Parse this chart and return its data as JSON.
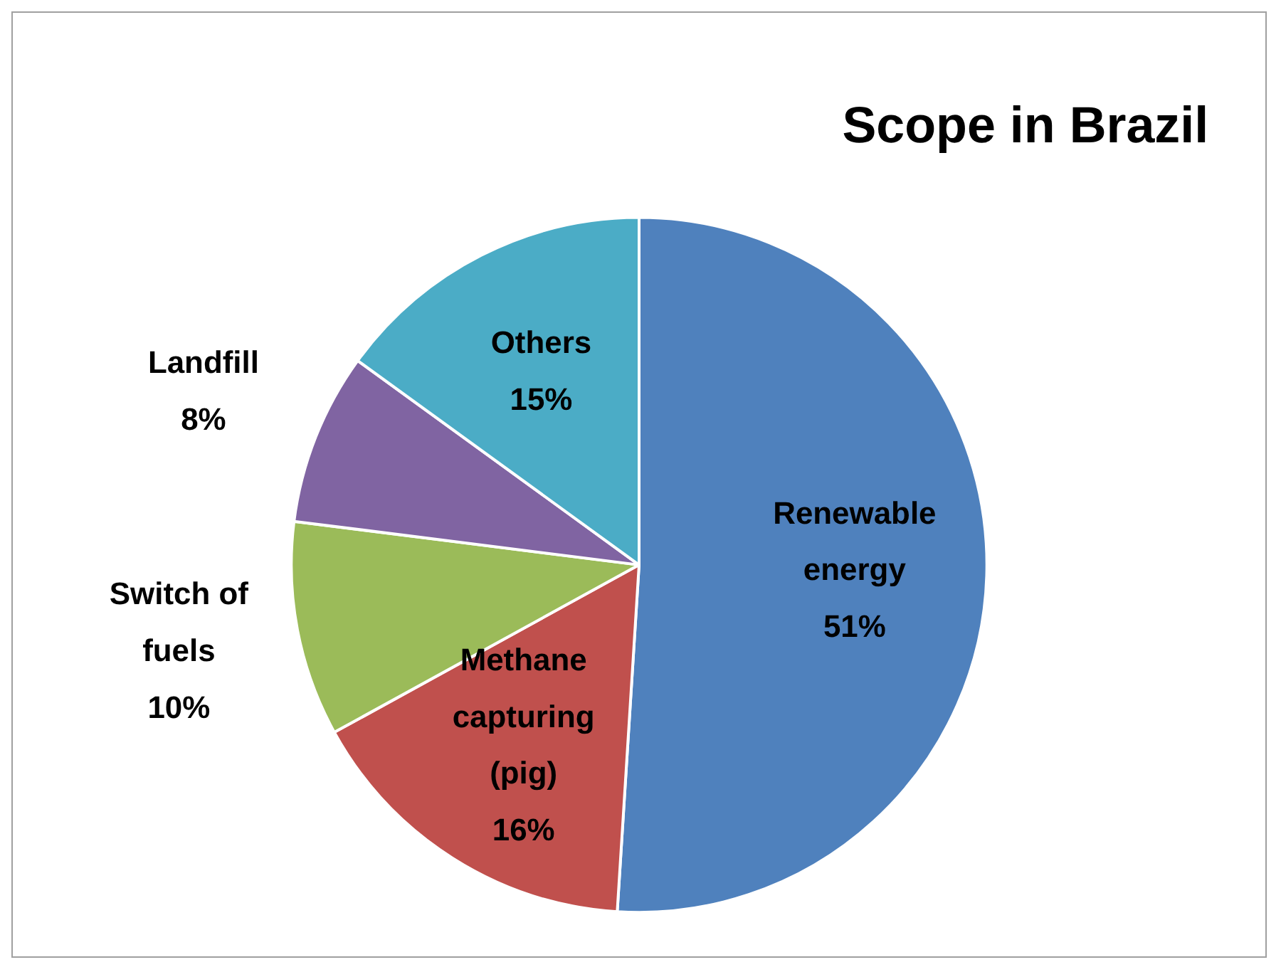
{
  "chart_data": {
    "type": "pie",
    "title": "Scope in Brazil",
    "categories": [
      "Renewable energy",
      "Methane capturing (pig)",
      "Switch of fuels",
      "Landfill",
      "Others"
    ],
    "values": [
      51,
      16,
      10,
      8,
      15
    ],
    "colors": [
      "#4f81bd",
      "#c0504d",
      "#9bbb59",
      "#8064a2",
      "#4bacc6"
    ],
    "value_labels": [
      "51%",
      "16%",
      "10%",
      "8%",
      "15%"
    ],
    "legend": false
  }
}
